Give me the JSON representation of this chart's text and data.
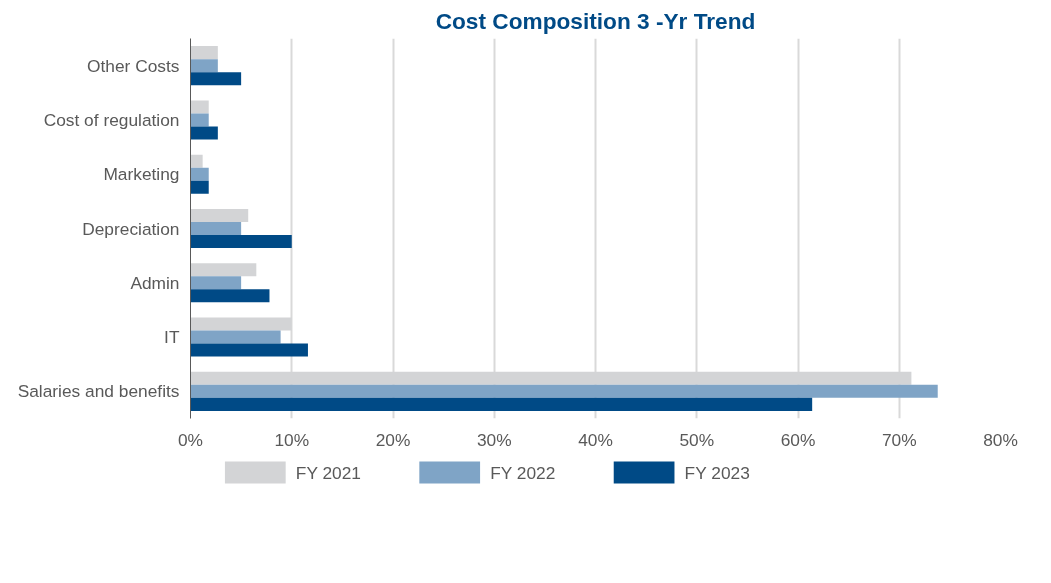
{
  "chart_data": {
    "type": "bar",
    "orientation": "horizontal",
    "title": "Cost Composition 3 -Yr Trend",
    "categories": [
      "Other Costs",
      "Cost of regulation",
      "Marketing",
      "Depreciation",
      "Admin",
      "IT",
      "Salaries and benefits"
    ],
    "series": [
      {
        "name": "FY 2021",
        "color": "#d3d4d6",
        "values": [
          2.7,
          1.8,
          1.2,
          5.7,
          6.5,
          10.0,
          71.2
        ]
      },
      {
        "name": "FY 2022",
        "color": "#7fa4c6",
        "values": [
          2.7,
          1.8,
          1.8,
          5.0,
          5.0,
          8.9,
          73.8
        ]
      },
      {
        "name": "FY 2023",
        "color": "#004a86",
        "values": [
          5.0,
          2.7,
          1.8,
          10.0,
          7.8,
          11.6,
          61.4
        ]
      }
    ],
    "xlim": [
      0,
      80
    ],
    "xticks": [
      {
        "value": 0,
        "label": "0%"
      },
      {
        "value": 10,
        "label": "10%"
      },
      {
        "value": 20,
        "label": "20%"
      },
      {
        "value": 30,
        "label": "30%"
      },
      {
        "value": 40,
        "label": "40%"
      },
      {
        "value": 50,
        "label": "50%"
      },
      {
        "value": 60,
        "label": "60%"
      },
      {
        "value": 70,
        "label": "70%"
      },
      {
        "value": 80,
        "label": "80%"
      }
    ],
    "grid": "x",
    "legend": "bottom"
  }
}
